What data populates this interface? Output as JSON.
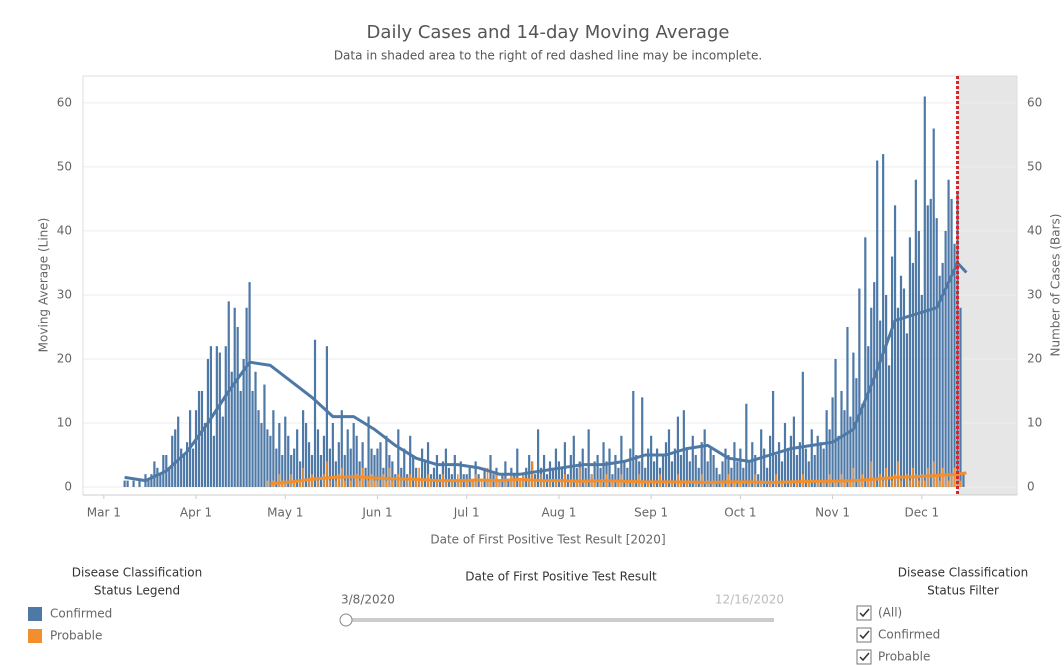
{
  "chart_data": {
    "type": "combo",
    "title": "Daily Cases and 14-day Moving Average",
    "subtitle": "Data in shaded area to the right of red dashed line may be incomplete.",
    "x_label": "Date of First Positive Test Result [2020]",
    "y_label": "Moving Average (Line)",
    "y2_label": "Number of Cases (Bars)",
    "xlim": [
      "2020-02-23",
      "2021-01-02"
    ],
    "xticks": [
      {
        "value": "2020-03-01",
        "label": "Mar 1"
      },
      {
        "value": "2020-04-01",
        "label": "Apr 1"
      },
      {
        "value": "2020-05-01",
        "label": "May 1"
      },
      {
        "value": "2020-06-01",
        "label": "Jun 1"
      },
      {
        "value": "2020-07-01",
        "label": "Jul 1"
      },
      {
        "value": "2020-08-01",
        "label": "Aug 1"
      },
      {
        "value": "2020-09-01",
        "label": "Sep 1"
      },
      {
        "value": "2020-10-01",
        "label": "Oct 1"
      },
      {
        "value": "2020-11-01",
        "label": "Nov 1"
      },
      {
        "value": "2020-12-01",
        "label": "Dec 1"
      }
    ],
    "ylim": [
      -1.25,
      64.2
    ],
    "yticks": [
      0,
      10,
      20,
      30,
      40,
      50,
      60
    ],
    "y2lim": [
      -1.25,
      64.2
    ],
    "y2ticks": [
      0,
      10,
      20,
      30,
      40,
      50,
      60
    ],
    "grid": true,
    "incomplete_from": "2020-12-13",
    "x": [
      "2020-03-08",
      "2020-03-09",
      "2020-03-10",
      "2020-03-11",
      "2020-03-12",
      "2020-03-13",
      "2020-03-14",
      "2020-03-15",
      "2020-03-16",
      "2020-03-17",
      "2020-03-18",
      "2020-03-19",
      "2020-03-20",
      "2020-03-21",
      "2020-03-22",
      "2020-03-23",
      "2020-03-24",
      "2020-03-25",
      "2020-03-26",
      "2020-03-27",
      "2020-03-28",
      "2020-03-29",
      "2020-03-30",
      "2020-03-31",
      "2020-04-01",
      "2020-04-02",
      "2020-04-03",
      "2020-04-04",
      "2020-04-05",
      "2020-04-06",
      "2020-04-07",
      "2020-04-08",
      "2020-04-09",
      "2020-04-10",
      "2020-04-11",
      "2020-04-12",
      "2020-04-13",
      "2020-04-14",
      "2020-04-15",
      "2020-04-16",
      "2020-04-17",
      "2020-04-18",
      "2020-04-19",
      "2020-04-20",
      "2020-04-21",
      "2020-04-22",
      "2020-04-23",
      "2020-04-24",
      "2020-04-25",
      "2020-04-26",
      "2020-04-27",
      "2020-04-28",
      "2020-04-29",
      "2020-04-30",
      "2020-05-01",
      "2020-05-02",
      "2020-05-03",
      "2020-05-04",
      "2020-05-05",
      "2020-05-06",
      "2020-05-07",
      "2020-05-08",
      "2020-05-09",
      "2020-05-10",
      "2020-05-11",
      "2020-05-12",
      "2020-05-13",
      "2020-05-14",
      "2020-05-15",
      "2020-05-16",
      "2020-05-17",
      "2020-05-18",
      "2020-05-19",
      "2020-05-20",
      "2020-05-21",
      "2020-05-22",
      "2020-05-23",
      "2020-05-24",
      "2020-05-25",
      "2020-05-26",
      "2020-05-27",
      "2020-05-28",
      "2020-05-29",
      "2020-05-30",
      "2020-05-31",
      "2020-06-01",
      "2020-06-02",
      "2020-06-03",
      "2020-06-04",
      "2020-06-05",
      "2020-06-06",
      "2020-06-07",
      "2020-06-08",
      "2020-06-09",
      "2020-06-10",
      "2020-06-11",
      "2020-06-12",
      "2020-06-13",
      "2020-06-14",
      "2020-06-15",
      "2020-06-16",
      "2020-06-17",
      "2020-06-18",
      "2020-06-19",
      "2020-06-20",
      "2020-06-21",
      "2020-06-22",
      "2020-06-23",
      "2020-06-24",
      "2020-06-25",
      "2020-06-26",
      "2020-06-27",
      "2020-06-28",
      "2020-06-29",
      "2020-06-30",
      "2020-07-01",
      "2020-07-02",
      "2020-07-03",
      "2020-07-04",
      "2020-07-05",
      "2020-07-06",
      "2020-07-07",
      "2020-07-08",
      "2020-07-09",
      "2020-07-10",
      "2020-07-11",
      "2020-07-12",
      "2020-07-13",
      "2020-07-14",
      "2020-07-15",
      "2020-07-16",
      "2020-07-17",
      "2020-07-18",
      "2020-07-19",
      "2020-07-20",
      "2020-07-21",
      "2020-07-22",
      "2020-07-23",
      "2020-07-24",
      "2020-07-25",
      "2020-07-26",
      "2020-07-27",
      "2020-07-28",
      "2020-07-29",
      "2020-07-30",
      "2020-07-31",
      "2020-08-01",
      "2020-08-02",
      "2020-08-03",
      "2020-08-04",
      "2020-08-05",
      "2020-08-06",
      "2020-08-07",
      "2020-08-08",
      "2020-08-09",
      "2020-08-10",
      "2020-08-11",
      "2020-08-12",
      "2020-08-13",
      "2020-08-14",
      "2020-08-15",
      "2020-08-16",
      "2020-08-17",
      "2020-08-18",
      "2020-08-19",
      "2020-08-20",
      "2020-08-21",
      "2020-08-22",
      "2020-08-23",
      "2020-08-24",
      "2020-08-25",
      "2020-08-26",
      "2020-08-27",
      "2020-08-28",
      "2020-08-29",
      "2020-08-30",
      "2020-08-31",
      "2020-09-01",
      "2020-09-02",
      "2020-09-03",
      "2020-09-04",
      "2020-09-05",
      "2020-09-06",
      "2020-09-07",
      "2020-09-08",
      "2020-09-09",
      "2020-09-10",
      "2020-09-11",
      "2020-09-12",
      "2020-09-13",
      "2020-09-14",
      "2020-09-15",
      "2020-09-16",
      "2020-09-17",
      "2020-09-18",
      "2020-09-19",
      "2020-09-20",
      "2020-09-21",
      "2020-09-22",
      "2020-09-23",
      "2020-09-24",
      "2020-09-25",
      "2020-09-26",
      "2020-09-27",
      "2020-09-28",
      "2020-09-29",
      "2020-09-30",
      "2020-10-01",
      "2020-10-02",
      "2020-10-03",
      "2020-10-04",
      "2020-10-05",
      "2020-10-06",
      "2020-10-07",
      "2020-10-08",
      "2020-10-09",
      "2020-10-10",
      "2020-10-11",
      "2020-10-12",
      "2020-10-13",
      "2020-10-14",
      "2020-10-15",
      "2020-10-16",
      "2020-10-17",
      "2020-10-18",
      "2020-10-19",
      "2020-10-20",
      "2020-10-21",
      "2020-10-22",
      "2020-10-23",
      "2020-10-24",
      "2020-10-25",
      "2020-10-26",
      "2020-10-27",
      "2020-10-28",
      "2020-10-29",
      "2020-10-30",
      "2020-10-31",
      "2020-11-01",
      "2020-11-02",
      "2020-11-03",
      "2020-11-04",
      "2020-11-05",
      "2020-11-06",
      "2020-11-07",
      "2020-11-08",
      "2020-11-09",
      "2020-11-10",
      "2020-11-11",
      "2020-11-12",
      "2020-11-13",
      "2020-11-14",
      "2020-11-15",
      "2020-11-16",
      "2020-11-17",
      "2020-11-18",
      "2020-11-19",
      "2020-11-20",
      "2020-11-21",
      "2020-11-22",
      "2020-11-23",
      "2020-11-24",
      "2020-11-25",
      "2020-11-26",
      "2020-11-27",
      "2020-11-28",
      "2020-11-29",
      "2020-11-30",
      "2020-12-01",
      "2020-12-02",
      "2020-12-03",
      "2020-12-04",
      "2020-12-05",
      "2020-12-06",
      "2020-12-07",
      "2020-12-08",
      "2020-12-09",
      "2020-12-10",
      "2020-12-11",
      "2020-12-12",
      "2020-12-13",
      "2020-12-14",
      "2020-12-15",
      "2020-12-16"
    ],
    "series": [
      {
        "name": "Confirmed",
        "type": "bar",
        "axis": "y2",
        "color": "#4e79a7",
        "values": [
          1,
          1,
          0,
          1,
          0,
          1,
          0,
          2,
          1,
          2,
          4,
          3,
          2,
          5,
          5,
          3,
          8,
          9,
          11,
          6,
          5,
          7,
          12,
          6,
          12,
          15,
          15,
          10,
          20,
          22,
          8,
          22,
          21,
          11,
          22,
          29,
          18,
          28,
          25,
          15,
          20,
          28,
          32,
          15,
          18,
          12,
          10,
          16,
          9,
          8,
          12,
          6,
          10,
          5,
          11,
          8,
          5,
          6,
          9,
          4,
          12,
          10,
          7,
          5,
          23,
          9,
          5,
          8,
          22,
          6,
          10,
          4,
          7,
          12,
          5,
          9,
          6,
          10,
          8,
          4,
          7,
          3,
          11,
          6,
          5,
          6,
          7,
          3,
          8,
          5,
          4,
          2,
          9,
          3,
          6,
          2,
          8,
          5,
          3,
          1,
          6,
          4,
          7,
          2,
          3,
          5,
          2,
          4,
          6,
          3,
          2,
          5,
          1,
          4,
          2,
          2,
          3,
          1,
          4,
          2,
          0,
          3,
          1,
          5,
          2,
          3,
          1,
          2,
          4,
          1,
          3,
          2,
          6,
          1,
          2,
          3,
          5,
          4,
          2,
          9,
          3,
          5,
          2,
          4,
          3,
          6,
          4,
          3,
          7,
          2,
          5,
          8,
          3,
          4,
          6,
          3,
          9,
          2,
          4,
          5,
          3,
          7,
          4,
          6,
          2,
          5,
          3,
          8,
          4,
          3,
          6,
          15,
          5,
          4,
          14,
          3,
          6,
          8,
          4,
          6,
          3,
          5,
          7,
          9,
          4,
          6,
          11,
          5,
          12,
          6,
          4,
          8,
          5,
          3,
          7,
          9,
          4,
          6,
          5,
          3,
          2,
          4,
          6,
          5,
          3,
          7,
          4,
          6,
          3,
          13,
          4,
          7,
          5,
          2,
          9,
          6,
          3,
          8,
          15,
          5,
          7,
          4,
          10,
          6,
          8,
          11,
          5,
          7,
          18,
          6,
          4,
          9,
          5,
          8,
          7,
          6,
          12,
          9,
          14,
          20,
          8,
          15,
          12,
          25,
          11,
          21,
          17,
          31,
          13,
          39,
          22,
          28,
          32,
          51,
          26,
          52,
          30,
          19,
          36,
          44,
          28,
          33,
          31,
          24,
          39,
          35,
          48,
          40,
          30,
          61,
          44,
          45,
          56,
          42,
          33,
          35,
          40,
          48,
          45,
          38,
          46,
          28,
          2,
          0
        ]
      },
      {
        "name": "Probable",
        "type": "bar",
        "axis": "y2",
        "color": "#f28e2b",
        "values": [
          0,
          0,
          0,
          0,
          0,
          0,
          0,
          0,
          0,
          0,
          0,
          0,
          0,
          0,
          0,
          0,
          0,
          0,
          0,
          0,
          0,
          0,
          0,
          0,
          0,
          0,
          0,
          0,
          0,
          0,
          0,
          0,
          0,
          0,
          0,
          0,
          0,
          0,
          0,
          0,
          0,
          0,
          0,
          0,
          0,
          0,
          0,
          0,
          1,
          0,
          1,
          0,
          2,
          1,
          1,
          0,
          2,
          1,
          0,
          1,
          3,
          0,
          1,
          2,
          0,
          1,
          0,
          2,
          4,
          1,
          0,
          1,
          2,
          3,
          1,
          0,
          1,
          0,
          2,
          1,
          3,
          0,
          1,
          2,
          1,
          1,
          0,
          2,
          1,
          3,
          1,
          0,
          2,
          1,
          0,
          1,
          2,
          0,
          1,
          3,
          1,
          0,
          2,
          1,
          0,
          1,
          0,
          2,
          1,
          0,
          1,
          0,
          2,
          1,
          0,
          1,
          0,
          1,
          2,
          0,
          1,
          0,
          3,
          1,
          0,
          2,
          1,
          0,
          1,
          0,
          2,
          1,
          0,
          1,
          2,
          0,
          1,
          4,
          1,
          0,
          2,
          1,
          0,
          1,
          0,
          1,
          0,
          1,
          2,
          0,
          1,
          0,
          1,
          3,
          0,
          1,
          0,
          2,
          1,
          0,
          1,
          0,
          2,
          0,
          1,
          0,
          1,
          2,
          0,
          1,
          0,
          1,
          0,
          2,
          1,
          0,
          1,
          0,
          1,
          0,
          2,
          0,
          1,
          0,
          1,
          0,
          2,
          1,
          0,
          1,
          0,
          0,
          1,
          0,
          2,
          0,
          1,
          0,
          1,
          0,
          0,
          1,
          0,
          2,
          0,
          1,
          0,
          1,
          0,
          0,
          1,
          0,
          2,
          0,
          1,
          0,
          0,
          1,
          0,
          2,
          0,
          1,
          0,
          0,
          1,
          0,
          1,
          0,
          2,
          0,
          1,
          0,
          0,
          1,
          0,
          1,
          0,
          2,
          0,
          1,
          0,
          2,
          1,
          0,
          1,
          3,
          0,
          1,
          2,
          0,
          1,
          4,
          1,
          0,
          2,
          1,
          3,
          0,
          1,
          2,
          4,
          1,
          0,
          2,
          1,
          3,
          2,
          1,
          2,
          1,
          3,
          0,
          4,
          2,
          1,
          3,
          2,
          1,
          2,
          3,
          2,
          1,
          0,
          0
        ]
      },
      {
        "name": "Confirmed",
        "type": "line",
        "axis": "y",
        "color": "#4e79a7",
        "x": [
          "2020-03-08",
          "2020-03-15",
          "2020-03-22",
          "2020-03-29",
          "2020-04-05",
          "2020-04-12",
          "2020-04-19",
          "2020-04-26",
          "2020-05-03",
          "2020-05-10",
          "2020-05-17",
          "2020-05-24",
          "2020-05-31",
          "2020-06-07",
          "2020-06-14",
          "2020-06-21",
          "2020-06-28",
          "2020-07-05",
          "2020-07-12",
          "2020-07-19",
          "2020-07-26",
          "2020-08-02",
          "2020-08-09",
          "2020-08-16",
          "2020-08-23",
          "2020-08-30",
          "2020-09-06",
          "2020-09-13",
          "2020-09-20",
          "2020-09-27",
          "2020-10-04",
          "2020-10-11",
          "2020-10-18",
          "2020-10-25",
          "2020-11-01",
          "2020-11-08",
          "2020-11-15",
          "2020-11-22",
          "2020-11-29",
          "2020-12-06",
          "2020-12-13",
          "2020-12-16"
        ],
        "values": [
          1.5,
          1,
          2.5,
          5.5,
          10,
          15,
          19.5,
          19,
          16.5,
          14,
          11,
          11,
          9,
          6.5,
          4.5,
          3.5,
          3.5,
          3,
          2,
          2,
          2.5,
          3,
          3.5,
          3.5,
          4,
          5,
          5,
          6,
          6.5,
          4.5,
          4,
          5,
          6,
          6.5,
          7,
          9,
          17,
          26,
          27,
          28,
          35,
          33.5
        ]
      },
      {
        "name": "Probable",
        "type": "line",
        "axis": "y",
        "color": "#f28e2b",
        "x": [
          "2020-04-26",
          "2020-05-03",
          "2020-05-10",
          "2020-05-17",
          "2020-05-24",
          "2020-05-31",
          "2020-06-07",
          "2020-06-14",
          "2020-06-21",
          "2020-06-28",
          "2020-07-05",
          "2020-07-12",
          "2020-07-19",
          "2020-07-26",
          "2020-08-02",
          "2020-08-09",
          "2020-08-16",
          "2020-08-23",
          "2020-08-30",
          "2020-09-06",
          "2020-09-13",
          "2020-09-20",
          "2020-09-27",
          "2020-10-04",
          "2020-10-11",
          "2020-10-18",
          "2020-10-25",
          "2020-11-01",
          "2020-11-08",
          "2020-11-15",
          "2020-11-22",
          "2020-11-29",
          "2020-12-06",
          "2020-12-13",
          "2020-12-16"
        ],
        "values": [
          0.5,
          0.8,
          1.2,
          1.5,
          1.6,
          1.4,
          1.3,
          1.2,
          1.0,
          1.0,
          1.1,
          1.0,
          1.2,
          1.0,
          1.0,
          0.9,
          1.0,
          0.9,
          0.8,
          0.8,
          0.8,
          0.7,
          0.8,
          0.8,
          0.7,
          0.8,
          0.9,
          0.9,
          1.0,
          1.2,
          1.5,
          1.6,
          1.8,
          2.0,
          2.2
        ]
      }
    ]
  },
  "legend": {
    "title_lines": [
      "Disease Classification",
      "Status Legend"
    ]
  },
  "slider": {
    "title": "Date of First Positive Test Result",
    "start": "3/8/2020",
    "end": "12/16/2020"
  },
  "filter": {
    "title_lines": [
      "Disease Classification",
      "Status Filter"
    ],
    "options": [
      "(All)",
      "Confirmed",
      "Probable"
    ]
  }
}
